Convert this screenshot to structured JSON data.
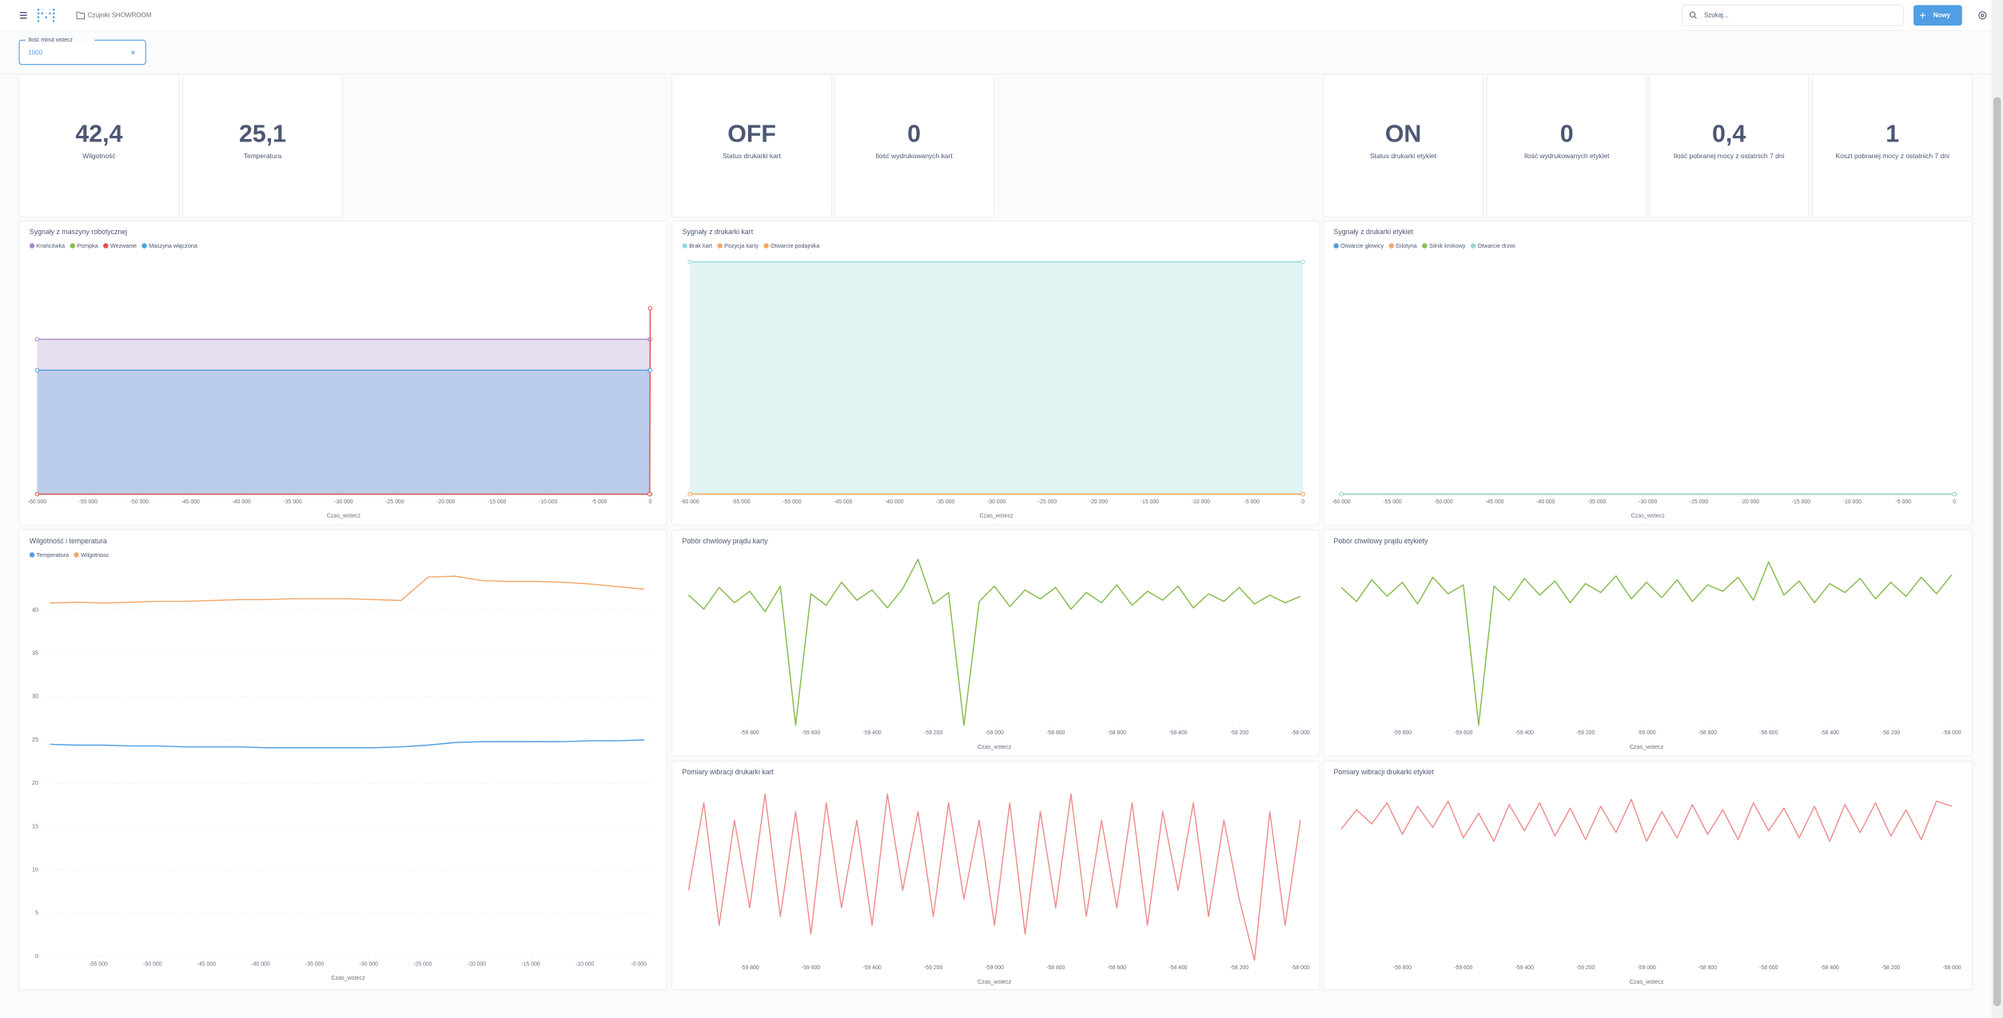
{
  "header": {
    "breadcrumb": "Czujniki SHOWROOM",
    "search_placeholder": "Szukaj...",
    "new_button": "Nowy"
  },
  "filter": {
    "label": "Ilość minut wstecz",
    "value": "1000"
  },
  "scalars": [
    {
      "value": "42,4",
      "label": "Wilgotność"
    },
    {
      "value": "25,1",
      "label": "Temperatura"
    },
    {
      "value": "OFF",
      "label": "Status drukarki kart"
    },
    {
      "value": 0,
      "label": "Ilość wydrukowanych kart"
    },
    {
      "value": "ON",
      "label": "Status drukarki etykiet"
    },
    {
      "value": 0,
      "label": "Ilość wydrukowanych etykiet"
    },
    {
      "value": "0,4",
      "label": "Ilość pobranej mocy z ostatnich 7 dni"
    },
    {
      "value": 1,
      "label": "Koszt pobranej mocy z ostatnich 7 dni"
    }
  ],
  "charts": [
    {
      "type": "area",
      "title": "Sygnały z maszyny robotycznej",
      "x_label": "Czas_wstecz",
      "x": [
        -60000,
        -50,
        0
      ],
      "xlim": [
        -60000,
        0
      ],
      "ylim": [
        0,
        7.5
      ],
      "xticks": [
        {
          "value": -60000,
          "label": "-60 000"
        },
        {
          "value": -55000,
          "label": "-55 000"
        },
        {
          "value": -50000,
          "label": "-50 000"
        },
        {
          "value": -45000,
          "label": "-45 000"
        },
        {
          "value": -40000,
          "label": "-40 000"
        },
        {
          "value": -35000,
          "label": "-35 000"
        },
        {
          "value": -30000,
          "label": "-30 000"
        },
        {
          "value": -25000,
          "label": "-25 000"
        },
        {
          "value": -20000,
          "label": "-20 000"
        },
        {
          "value": -15000,
          "label": "-15 000"
        },
        {
          "value": -10000,
          "label": "-10 000"
        },
        {
          "value": -5000,
          "label": "-5 000"
        },
        0
      ],
      "series": [
        {
          "name": "Krańcówka",
          "color": "#a989c5",
          "values": [
            5,
            5,
            5
          ]
        },
        {
          "name": "Pompka",
          "color": "#88bf4d",
          "values": [
            0,
            0,
            0
          ]
        },
        {
          "name": "Wezwanie",
          "color": "#e35050",
          "values": [
            0,
            0,
            6
          ]
        },
        {
          "name": "Maszyna włączona",
          "color": "#509ee3",
          "values": [
            4,
            4,
            4
          ]
        }
      ]
    },
    {
      "type": "area",
      "title": "Sygnały z drukarki kart",
      "x_label": "Czas_wstecz",
      "x": [
        -60000,
        0
      ],
      "xlim": [
        -60000,
        0
      ],
      "ylim": [
        0,
        1
      ],
      "xticks": [
        {
          "value": -60000,
          "label": "-60 000"
        },
        {
          "value": -55000,
          "label": "-55 000"
        },
        {
          "value": -50000,
          "label": "-50 000"
        },
        {
          "value": -45000,
          "label": "-45 000"
        },
        {
          "value": -40000,
          "label": "-40 000"
        },
        {
          "value": -35000,
          "label": "-35 000"
        },
        {
          "value": -30000,
          "label": "-30 000"
        },
        {
          "value": -25000,
          "label": "-25 000"
        },
        {
          "value": -20000,
          "label": "-20 000"
        },
        {
          "value": -15000,
          "label": "-15 000"
        },
        {
          "value": -10000,
          "label": "-10 000"
        },
        {
          "value": -5000,
          "label": "-5 000"
        },
        0
      ],
      "series": [
        {
          "name": "Brak kart",
          "color": "#98d9d9",
          "values": [
            1,
            1
          ]
        },
        {
          "name": "Pozycja karty",
          "color": "#f2a86f",
          "values": [
            0,
            0
          ]
        },
        {
          "name": "Otwarcie podajnika",
          "color": "#f9a65a",
          "values": [
            0,
            0
          ]
        }
      ]
    },
    {
      "type": "area",
      "title": "Sygnały z drukarki etykiet",
      "x_label": "Czas_wstecz",
      "x": [
        -60000,
        0
      ],
      "xlim": [
        -60000,
        0
      ],
      "ylim": [
        0,
        1
      ],
      "xticks": [
        {
          "value": -60000,
          "label": "-60 000"
        },
        {
          "value": -55000,
          "label": "-55 000"
        },
        {
          "value": -50000,
          "label": "-50 000"
        },
        {
          "value": -45000,
          "label": "-45 000"
        },
        {
          "value": -40000,
          "label": "-40 000"
        },
        {
          "value": -35000,
          "label": "-35 000"
        },
        {
          "value": -30000,
          "label": "-30 000"
        },
        {
          "value": -25000,
          "label": "-25 000"
        },
        {
          "value": -20000,
          "label": "-20 000"
        },
        {
          "value": -15000,
          "label": "-15 000"
        },
        {
          "value": -10000,
          "label": "-10 000"
        },
        {
          "value": -5000,
          "label": "-5 000"
        },
        0
      ],
      "series": [
        {
          "name": "Otwarcie głowicy",
          "color": "#509ee3",
          "values": [
            0,
            0
          ]
        },
        {
          "name": "Gilotyna",
          "color": "#f2a86f",
          "values": [
            0,
            0
          ]
        },
        {
          "name": "Silnik krokowy",
          "color": "#88bf4d",
          "values": [
            0,
            0
          ]
        },
        {
          "name": "Otwarcie drzwi",
          "color": "#98d9d9",
          "values": [
            0,
            0
          ]
        }
      ]
    },
    {
      "type": "line",
      "title": "Wilgotność i temperatura",
      "x_label": "Czas_wstecz",
      "grid": true,
      "x": [
        -59500,
        -57000,
        -54500,
        -52000,
        -49500,
        -47000,
        -44500,
        -42000,
        -39500,
        -37000,
        -34500,
        -32000,
        -29500,
        -27000,
        -24500,
        -22000,
        -19500,
        -17000,
        -14500,
        -12000,
        -9500,
        -7000,
        -4500
      ],
      "xlim": [
        -59850,
        -3950
      ],
      "ylim": [
        0,
        46
      ],
      "xticks": [
        {
          "value": -55000,
          "label": "-55 000"
        },
        {
          "value": -50000,
          "label": "-50 000"
        },
        {
          "value": -45000,
          "label": "-45 000"
        },
        {
          "value": -40000,
          "label": "-40 000"
        },
        {
          "value": -35000,
          "label": "-35 000"
        },
        {
          "value": -30000,
          "label": "-30 000"
        },
        {
          "value": -25000,
          "label": "-25 000"
        },
        {
          "value": -20000,
          "label": "-20 000"
        },
        {
          "value": -15000,
          "label": "-15 000"
        },
        {
          "value": -10000,
          "label": "-10 000"
        },
        {
          "value": -5000,
          "label": "-5 000"
        }
      ],
      "yticks": [
        0,
        5,
        10,
        15,
        20,
        25,
        30,
        35,
        40
      ],
      "series": [
        {
          "name": "Temperatura",
          "color": "#509ee3",
          "values": [
            24.5,
            24.4,
            24.4,
            24.3,
            24.3,
            24.2,
            24.2,
            24.2,
            24.1,
            24.1,
            24.1,
            24.1,
            24.1,
            24.2,
            24.4,
            24.7,
            24.8,
            24.8,
            24.8,
            24.8,
            24.9,
            24.9,
            25.0
          ]
        },
        {
          "name": "Wilgotnosc",
          "color": "#f2a86f",
          "values": [
            40.8,
            40.9,
            40.8,
            40.9,
            41.0,
            41.0,
            41.1,
            41.2,
            41.2,
            41.3,
            41.3,
            41.3,
            41.2,
            41.1,
            43.8,
            43.9,
            43.4,
            43.3,
            43.3,
            43.2,
            43.0,
            42.7,
            42.4
          ]
        }
      ]
    },
    {
      "type": "line",
      "title": "Pobór chwilowy prądu karty",
      "x_label": "Czas_wstecz",
      "x": [
        -60000,
        -59950,
        -59900,
        -59850,
        -59800,
        -59750,
        -59700,
        -59650,
        -59600,
        -59550,
        -59500,
        -59450,
        -59400,
        -59350,
        -59300,
        -59250,
        -59200,
        -59150,
        -59100,
        -59050,
        -59000,
        -58950,
        -58900,
        -58850,
        -58800,
        -58750,
        -58700,
        -58650,
        -58600,
        -58550,
        -58500,
        -58450,
        -58400,
        -58350,
        -58300,
        -58250,
        -58200,
        -58150,
        -58100,
        -58050,
        -58000
      ],
      "xlim": [
        -60000,
        -58000
      ],
      "ylim": [
        0,
        13
      ],
      "xticks": [
        {
          "value": -59800,
          "label": "-59 800"
        },
        {
          "value": -59600,
          "label": "-59 600"
        },
        {
          "value": -59400,
          "label": "-59 400"
        },
        {
          "value": -59200,
          "label": "-59 200"
        },
        {
          "value": -59000,
          "label": "-59 000"
        },
        {
          "value": -58800,
          "label": "-58 800"
        },
        {
          "value": -58600,
          "label": "-58 600"
        },
        {
          "value": -58400,
          "label": "-58 400"
        },
        {
          "value": -58200,
          "label": "-58 200"
        },
        {
          "value": -58000,
          "label": "-58 000"
        }
      ],
      "series": [
        {
          "color": "#84bb4c",
          "values": [
            10.2,
            9.1,
            10.8,
            9.6,
            10.5,
            8.9,
            10.9,
            0,
            10.3,
            9.4,
            11.2,
            9.8,
            10.6,
            9.2,
            10.7,
            13,
            9.5,
            10.4,
            0,
            9.7,
            10.9,
            9.3,
            10.6,
            9.9,
            10.8,
            9.1,
            10.4,
            9.6,
            11.0,
            9.4,
            10.5,
            9.8,
            10.9,
            9.2,
            10.3,
            9.7,
            10.8,
            9.5,
            10.2,
            9.6,
            10.1
          ]
        }
      ]
    },
    {
      "type": "line",
      "title": "Pobór chwilowy prądu etykiety",
      "x_label": "Czas_wstecz",
      "x": [
        -60000,
        -59950,
        -59900,
        -59850,
        -59800,
        -59750,
        -59700,
        -59650,
        -59600,
        -59550,
        -59500,
        -59450,
        -59400,
        -59350,
        -59300,
        -59250,
        -59200,
        -59150,
        -59100,
        -59050,
        -59000,
        -58950,
        -58900,
        -58850,
        -58800,
        -58750,
        -58700,
        -58650,
        -58600,
        -58550,
        -58500,
        -58450,
        -58400,
        -58350,
        -58300,
        -58250,
        -58200,
        -58150,
        -58100,
        -58050,
        -58000
      ],
      "xlim": [
        -60000,
        -58000
      ],
      "ylim": [
        0,
        13
      ],
      "xticks": [
        {
          "value": -59800,
          "label": "-59 800"
        },
        {
          "value": -59600,
          "label": "-59 600"
        },
        {
          "value": -59400,
          "label": "-59 400"
        },
        {
          "value": -59200,
          "label": "-59 200"
        },
        {
          "value": -59000,
          "label": "-59 000"
        },
        {
          "value": -58800,
          "label": "-58 800"
        },
        {
          "value": -58600,
          "label": "-58 600"
        },
        {
          "value": -58400,
          "label": "-58 400"
        },
        {
          "value": -58200,
          "label": "-58 200"
        },
        {
          "value": -58000,
          "label": "-58 000"
        }
      ],
      "series": [
        {
          "color": "#84bb4c",
          "values": [
            10.8,
            9.7,
            11.4,
            10.1,
            11.2,
            9.5,
            11.6,
            10.3,
            11.0,
            0,
            10.9,
            9.8,
            11.5,
            10.2,
            11.3,
            9.6,
            11.1,
            10.4,
            11.7,
            9.9,
            11.2,
            10.0,
            11.4,
            9.7,
            11.0,
            10.5,
            11.6,
            9.8,
            12.8,
            10.2,
            11.3,
            9.6,
            11.1,
            10.4,
            11.5,
            9.9,
            11.2,
            10.1,
            11.6,
            10.3,
            11.8
          ]
        }
      ]
    },
    {
      "type": "line",
      "title": "Pomiary wibracji drukarki kart",
      "x_label": "Czas_wstecz",
      "x": [
        -60000,
        -59950,
        -59900,
        -59850,
        -59800,
        -59750,
        -59700,
        -59650,
        -59600,
        -59550,
        -59500,
        -59450,
        -59400,
        -59350,
        -59300,
        -59250,
        -59200,
        -59150,
        -59100,
        -59050,
        -59000,
        -58950,
        -58900,
        -58850,
        -58800,
        -58750,
        -58700,
        -58650,
        -58600,
        -58550,
        -58500,
        -58450,
        -58400,
        -58350,
        -58300,
        -58250,
        -58200,
        -58150,
        -58100,
        -58050,
        -58000
      ],
      "xlim": [
        -60000,
        -58000
      ],
      "ylim": [
        0,
        10
      ],
      "xticks": [
        {
          "value": -59800,
          "label": "-59 800"
        },
        {
          "value": -59600,
          "label": "-59 600"
        },
        {
          "value": -59400,
          "label": "-59 400"
        },
        {
          "value": -59200,
          "label": "-59 200"
        },
        {
          "value": -59000,
          "label": "-59 000"
        },
        {
          "value": -58800,
          "label": "-58 800"
        },
        {
          "value": -58600,
          "label": "-58 600"
        },
        {
          "value": -58400,
          "label": "-58 400"
        },
        {
          "value": -58200,
          "label": "-58 200"
        },
        {
          "value": -58000,
          "label": "-58 000"
        }
      ],
      "series": [
        {
          "color": "#ef8c8c",
          "values": [
            4,
            9,
            2,
            8,
            3,
            9.5,
            2.5,
            8.5,
            1.5,
            9,
            3,
            8,
            2,
            9.5,
            4,
            8.5,
            2.5,
            9,
            3.5,
            8,
            2,
            9,
            1.5,
            8.5,
            3,
            9.5,
            2.5,
            8,
            3,
            9,
            2,
            8.5,
            4,
            9,
            2.5,
            8,
            3.5,
            0,
            8.5,
            2,
            8
          ]
        }
      ]
    },
    {
      "type": "line",
      "title": "Pomiary wibracji drukarki etykiet",
      "x_label": "Czas_wstecz",
      "x": [
        -60000,
        -59950,
        -59900,
        -59850,
        -59800,
        -59750,
        -59700,
        -59650,
        -59600,
        -59550,
        -59500,
        -59450,
        -59400,
        -59350,
        -59300,
        -59250,
        -59200,
        -59150,
        -59100,
        -59050,
        -59000,
        -58950,
        -58900,
        -58850,
        -58800,
        -58750,
        -58700,
        -58650,
        -58600,
        -58550,
        -58500,
        -58450,
        -58400,
        -58350,
        -58300,
        -58250,
        -58200,
        -58150,
        -58100,
        -58050,
        -58000
      ],
      "xlim": [
        -60000,
        -58000
      ],
      "ylim": [
        0,
        10
      ],
      "xticks": [
        {
          "value": -59800,
          "label": "-59 800"
        },
        {
          "value": -59600,
          "label": "-59 600"
        },
        {
          "value": -59400,
          "label": "-59 400"
        },
        {
          "value": -59200,
          "label": "-59 200"
        },
        {
          "value": -59000,
          "label": "-59 000"
        },
        {
          "value": -58800,
          "label": "-58 800"
        },
        {
          "value": -58600,
          "label": "-58 600"
        },
        {
          "value": -58400,
          "label": "-58 400"
        },
        {
          "value": -58200,
          "label": "-58 200"
        },
        {
          "value": -58000,
          "label": "-58 000"
        }
      ],
      "series": [
        {
          "color": "#ef8c8c",
          "values": [
            7.5,
            8.6,
            7.8,
            9.0,
            7.2,
            8.8,
            7.6,
            9.1,
            7.0,
            8.4,
            6.8,
            8.9,
            7.4,
            9.0,
            7.1,
            8.7,
            6.9,
            8.8,
            7.3,
            9.2,
            6.8,
            8.5,
            7.0,
            8.9,
            7.2,
            8.6,
            6.9,
            9.0,
            7.4,
            8.7,
            7.0,
            8.8,
            6.8,
            8.9,
            7.3,
            9.0,
            7.1,
            8.6,
            6.9,
            9.1,
            8.8
          ]
        }
      ]
    }
  ]
}
